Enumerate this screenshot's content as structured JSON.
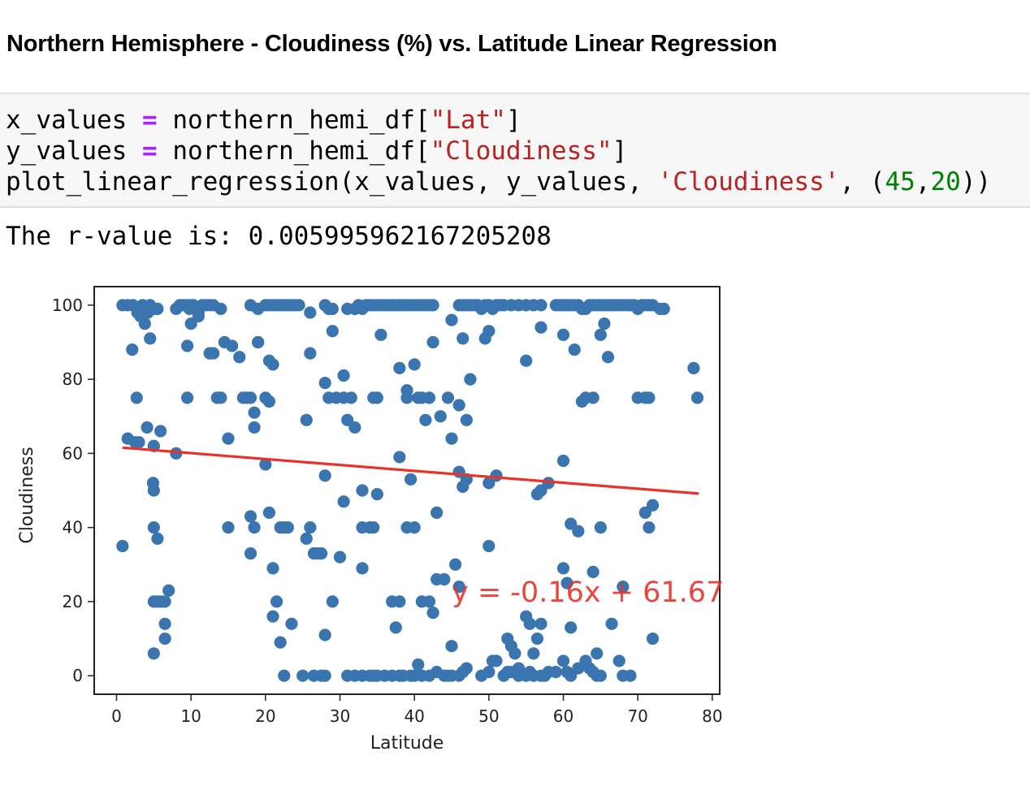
{
  "heading": "Northern Hemisphere - Cloudiness (%) vs. Latitude Linear Regression",
  "code": {
    "line1": {
      "a": "x_values",
      "op": "=",
      "b": "northern_hemi_df[",
      "str": "\"Lat\"",
      "c": "]"
    },
    "line2": {
      "a": "y_values",
      "op": "=",
      "b": "northern_hemi_df[",
      "str": "\"Cloudiness\"",
      "c": "]"
    },
    "line3": {
      "a": "plot_linear_regression(x_values, y_values, ",
      "str": "'Cloudiness'",
      "b": ", (",
      "n1": "45",
      "comma": ",",
      "n2": "20",
      "c": "))"
    }
  },
  "output_text": "The r-value is: 0.005995962167205208",
  "chart_data": {
    "type": "scatter",
    "xlabel": "Latitude",
    "ylabel": "Cloudiness",
    "xlim": [
      -3,
      81
    ],
    "ylim": [
      -5,
      105
    ],
    "xticks": [
      0,
      10,
      20,
      30,
      40,
      50,
      60,
      70,
      80
    ],
    "yticks": [
      0,
      20,
      40,
      60,
      80,
      100
    ],
    "marker_color": "#3b75af",
    "line_color": "#e8322a",
    "regression": {
      "slope": -0.16,
      "intercept": 61.67,
      "x_range": [
        0.8,
        78.2
      ],
      "equation": "y = -0.16x + 61.67",
      "label_at": [
        45,
        20
      ]
    },
    "points": [
      [
        0.8,
        100
      ],
      [
        1.5,
        100
      ],
      [
        2.2,
        100
      ],
      [
        2.8,
        98
      ],
      [
        3.2,
        97
      ],
      [
        3.5,
        100
      ],
      [
        3.8,
        95
      ],
      [
        4.2,
        98
      ],
      [
        4.5,
        100
      ],
      [
        5,
        99
      ],
      [
        5.5,
        99
      ],
      [
        8,
        99
      ],
      [
        8.5,
        100
      ],
      [
        9,
        100
      ],
      [
        9.5,
        100
      ],
      [
        9.8,
        99
      ],
      [
        10,
        100
      ],
      [
        10.3,
        100
      ],
      [
        10.6,
        99
      ],
      [
        11,
        98
      ],
      [
        11.5,
        100
      ],
      [
        12,
        100
      ],
      [
        12.5,
        100
      ],
      [
        13,
        100
      ],
      [
        14,
        99
      ],
      [
        18,
        100
      ],
      [
        19,
        99
      ],
      [
        20,
        100
      ],
      [
        20.5,
        100
      ],
      [
        21,
        100
      ],
      [
        21.5,
        100
      ],
      [
        22,
        100
      ],
      [
        22.5,
        100
      ],
      [
        23,
        100
      ],
      [
        23.5,
        100
      ],
      [
        24,
        100
      ],
      [
        24.5,
        100
      ],
      [
        26,
        98
      ],
      [
        28,
        100
      ],
      [
        28.5,
        99
      ],
      [
        29,
        99
      ],
      [
        31,
        99
      ],
      [
        32,
        99
      ],
      [
        32.5,
        100
      ],
      [
        33,
        99
      ],
      [
        33.5,
        100
      ],
      [
        34,
        100
      ],
      [
        34.5,
        100
      ],
      [
        35,
        100
      ],
      [
        35.5,
        100
      ],
      [
        36,
        100
      ],
      [
        36.5,
        100
      ],
      [
        37,
        100
      ],
      [
        37.5,
        100
      ],
      [
        38,
        100
      ],
      [
        38.5,
        100
      ],
      [
        39,
        100
      ],
      [
        39.5,
        100
      ],
      [
        40,
        100
      ],
      [
        40.5,
        100
      ],
      [
        41,
        100
      ],
      [
        41.5,
        100
      ],
      [
        42,
        100
      ],
      [
        42.5,
        100
      ],
      [
        46,
        100
      ],
      [
        46.5,
        100
      ],
      [
        47,
        100
      ],
      [
        47.5,
        100
      ],
      [
        48,
        100
      ],
      [
        48.5,
        100
      ],
      [
        49,
        99
      ],
      [
        49.5,
        100
      ],
      [
        50,
        100
      ],
      [
        50.5,
        99
      ],
      [
        51,
        100
      ],
      [
        51.5,
        100
      ],
      [
        52,
        100
      ],
      [
        53,
        100
      ],
      [
        54,
        100
      ],
      [
        55,
        100
      ],
      [
        56,
        100
      ],
      [
        57,
        100
      ],
      [
        59,
        100
      ],
      [
        59.5,
        100
      ],
      [
        60,
        100
      ],
      [
        60.5,
        100
      ],
      [
        61,
        100
      ],
      [
        61.5,
        100
      ],
      [
        62,
        100
      ],
      [
        62.5,
        99
      ],
      [
        63,
        99
      ],
      [
        63.5,
        100
      ],
      [
        64,
        100
      ],
      [
        64.5,
        100
      ],
      [
        65,
        100
      ],
      [
        65.5,
        100
      ],
      [
        66,
        100
      ],
      [
        66.5,
        100
      ],
      [
        67,
        100
      ],
      [
        67.5,
        100
      ],
      [
        68,
        100
      ],
      [
        68.5,
        100
      ],
      [
        69,
        100
      ],
      [
        69.5,
        100
      ],
      [
        70,
        99
      ],
      [
        70.5,
        100
      ],
      [
        71,
        100
      ],
      [
        71.5,
        100
      ],
      [
        72,
        100
      ],
      [
        73,
        99
      ],
      [
        73.5,
        99
      ],
      [
        1.5,
        64
      ],
      [
        2.1,
        88
      ],
      [
        2.7,
        75
      ],
      [
        3.0,
        63
      ],
      [
        4.1,
        67
      ],
      [
        4.5,
        91
      ],
      [
        5,
        62
      ],
      [
        5.9,
        66
      ],
      [
        8,
        60
      ],
      [
        9.5,
        75
      ],
      [
        9.5,
        89
      ],
      [
        10,
        95
      ],
      [
        11,
        97
      ],
      [
        12.5,
        87
      ],
      [
        13,
        87
      ],
      [
        13.5,
        75
      ],
      [
        14,
        75
      ],
      [
        14.5,
        90
      ],
      [
        15,
        64
      ],
      [
        15.5,
        89
      ],
      [
        16.5,
        86
      ],
      [
        17,
        75
      ],
      [
        17.5,
        75
      ],
      [
        18,
        75
      ],
      [
        18.5,
        67
      ],
      [
        18.5,
        71
      ],
      [
        19,
        90
      ],
      [
        19,
        90
      ],
      [
        20,
        75
      ],
      [
        20.5,
        74
      ],
      [
        20.5,
        85
      ],
      [
        21,
        84
      ],
      [
        25.5,
        69
      ],
      [
        26,
        87
      ],
      [
        28,
        79
      ],
      [
        28.5,
        75
      ],
      [
        29,
        93
      ],
      [
        29.5,
        75
      ],
      [
        30.5,
        81
      ],
      [
        30.5,
        75
      ],
      [
        31,
        69
      ],
      [
        31.5,
        75
      ],
      [
        32,
        67
      ],
      [
        34.5,
        75
      ],
      [
        35,
        75
      ],
      [
        35.5,
        92
      ],
      [
        38,
        83
      ],
      [
        39,
        77
      ],
      [
        39,
        75
      ],
      [
        40,
        84
      ],
      [
        40.5,
        75
      ],
      [
        41,
        75
      ],
      [
        41.5,
        69
      ],
      [
        42,
        75
      ],
      [
        42.5,
        90
      ],
      [
        43.5,
        70
      ],
      [
        44.5,
        75
      ],
      [
        45,
        96
      ],
      [
        45,
        64
      ],
      [
        46,
        73
      ],
      [
        46.5,
        91
      ],
      [
        47,
        69
      ],
      [
        47.5,
        80
      ],
      [
        49.5,
        91
      ],
      [
        50,
        93
      ],
      [
        55,
        85
      ],
      [
        57,
        94
      ],
      [
        60,
        92
      ],
      [
        61.5,
        88
      ],
      [
        62.5,
        74
      ],
      [
        63,
        75
      ],
      [
        64,
        75
      ],
      [
        65,
        92
      ],
      [
        65.5,
        95
      ],
      [
        66,
        86
      ],
      [
        70,
        75
      ],
      [
        71,
        75
      ],
      [
        71.5,
        75
      ],
      [
        77.5,
        83
      ],
      [
        78,
        75
      ],
      [
        0.8,
        35
      ],
      [
        2.5,
        63
      ],
      [
        4.9,
        52
      ],
      [
        5,
        50
      ],
      [
        5,
        40
      ],
      [
        5.5,
        37
      ],
      [
        5,
        20
      ],
      [
        5.5,
        20
      ],
      [
        6,
        20
      ],
      [
        6.5,
        20
      ],
      [
        6.5,
        14
      ],
      [
        6.5,
        10
      ],
      [
        7,
        23
      ],
      [
        5,
        6
      ],
      [
        15,
        40
      ],
      [
        18,
        43
      ],
      [
        18,
        33
      ],
      [
        18.5,
        40
      ],
      [
        20,
        57
      ],
      [
        20.5,
        44
      ],
      [
        21,
        29
      ],
      [
        21,
        16
      ],
      [
        21.5,
        20
      ],
      [
        22,
        9
      ],
      [
        22,
        40
      ],
      [
        22.5,
        40
      ],
      [
        23,
        40
      ],
      [
        23.5,
        14
      ],
      [
        25.5,
        37
      ],
      [
        26,
        40
      ],
      [
        26.5,
        33
      ],
      [
        27,
        33
      ],
      [
        27.5,
        33
      ],
      [
        28,
        54
      ],
      [
        28,
        11
      ],
      [
        29,
        20
      ],
      [
        30,
        32
      ],
      [
        30.5,
        47
      ],
      [
        33,
        50
      ],
      [
        33,
        40
      ],
      [
        33,
        29
      ],
      [
        34,
        40
      ],
      [
        34.5,
        40
      ],
      [
        35,
        49
      ],
      [
        37,
        20
      ],
      [
        37.5,
        13
      ],
      [
        38,
        20
      ],
      [
        38,
        59
      ],
      [
        39,
        40
      ],
      [
        39.5,
        53
      ],
      [
        40,
        40
      ],
      [
        41,
        20
      ],
      [
        42,
        20
      ],
      [
        42.5,
        17
      ],
      [
        43,
        26
      ],
      [
        43,
        44
      ],
      [
        44,
        26
      ],
      [
        45,
        8
      ],
      [
        45.5,
        30
      ],
      [
        46,
        24
      ],
      [
        46,
        55
      ],
      [
        46.5,
        51
      ],
      [
        47,
        53
      ],
      [
        50,
        35
      ],
      [
        50,
        52
      ],
      [
        51,
        54
      ],
      [
        52.5,
        10
      ],
      [
        53,
        8
      ],
      [
        53.5,
        6
      ],
      [
        55,
        16
      ],
      [
        55.5,
        14
      ],
      [
        56,
        6
      ],
      [
        56.5,
        10
      ],
      [
        56.5,
        49
      ],
      [
        57,
        50
      ],
      [
        57,
        14
      ],
      [
        58,
        52
      ],
      [
        60,
        58
      ],
      [
        60,
        29
      ],
      [
        60.5,
        25
      ],
      [
        61,
        41
      ],
      [
        61,
        13
      ],
      [
        62,
        39
      ],
      [
        63,
        4
      ],
      [
        64,
        28
      ],
      [
        64.5,
        6
      ],
      [
        65,
        40
      ],
      [
        66.5,
        14
      ],
      [
        67.5,
        4
      ],
      [
        68,
        24
      ],
      [
        71,
        44
      ],
      [
        71.5,
        40
      ],
      [
        72,
        46
      ],
      [
        72,
        10
      ],
      [
        22.5,
        0
      ],
      [
        25,
        0
      ],
      [
        26.5,
        0
      ],
      [
        27.5,
        0
      ],
      [
        28,
        0
      ],
      [
        31,
        0
      ],
      [
        32,
        0
      ],
      [
        33,
        0
      ],
      [
        34,
        0
      ],
      [
        34.5,
        0
      ],
      [
        35,
        0
      ],
      [
        36,
        0
      ],
      [
        37,
        0
      ],
      [
        38,
        0
      ],
      [
        38.5,
        0
      ],
      [
        39.5,
        0
      ],
      [
        40,
        0
      ],
      [
        40.5,
        3
      ],
      [
        41,
        0
      ],
      [
        42,
        0
      ],
      [
        43,
        1
      ],
      [
        44,
        0
      ],
      [
        44.5,
        0
      ],
      [
        45,
        0
      ],
      [
        46,
        0
      ],
      [
        46.5,
        1
      ],
      [
        47,
        2
      ],
      [
        49,
        0
      ],
      [
        50,
        1
      ],
      [
        50.5,
        4
      ],
      [
        51,
        4
      ],
      [
        52,
        0
      ],
      [
        52.5,
        1
      ],
      [
        53,
        1
      ],
      [
        54,
        2
      ],
      [
        54,
        0
      ],
      [
        55,
        0
      ],
      [
        55.5,
        1
      ],
      [
        56,
        0
      ],
      [
        57,
        0
      ],
      [
        57.5,
        0
      ],
      [
        58,
        1
      ],
      [
        59,
        1
      ],
      [
        60,
        4
      ],
      [
        60.5,
        1
      ],
      [
        61,
        0
      ],
      [
        62,
        2
      ],
      [
        63.5,
        2
      ],
      [
        64,
        1
      ],
      [
        64.5,
        0
      ],
      [
        65,
        0
      ],
      [
        68,
        0
      ],
      [
        69,
        0
      ]
    ]
  }
}
